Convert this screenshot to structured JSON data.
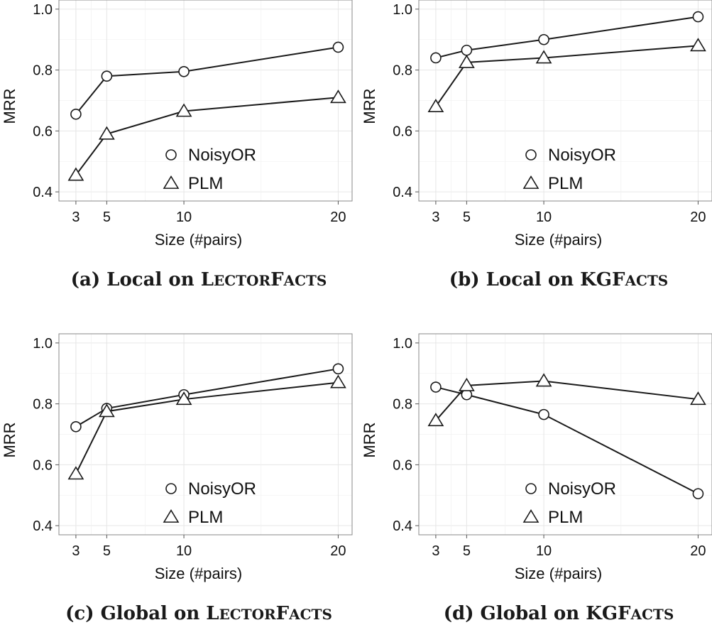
{
  "chart_data": [
    {
      "type": "line",
      "caption": {
        "prefix": "(a) Local on ",
        "sc": [
          [
            "L",
            "ECTOR"
          ],
          [
            "F",
            "ACTS"
          ]
        ]
      },
      "xlabel": "Size (#pairs)",
      "ylabel": "MRR",
      "x": [
        3,
        5,
        10,
        20
      ],
      "xticks": [
        3,
        5,
        10,
        20
      ],
      "yticks": [
        0.4,
        0.6,
        0.8,
        1.0
      ],
      "ytick_labels": [
        "0.4",
        "0.6",
        "0.8",
        "1.0"
      ],
      "xlim": [
        1.9,
        20.9
      ],
      "ylim": [
        0.37,
        1.03
      ],
      "grid": true,
      "legend": "center",
      "series": [
        {
          "name": "NoisyOR",
          "marker": "circle",
          "values": [
            0.655,
            0.78,
            0.795,
            0.875
          ]
        },
        {
          "name": "PLM",
          "marker": "triangle",
          "values": [
            0.455,
            0.59,
            0.665,
            0.71
          ]
        }
      ]
    },
    {
      "type": "line",
      "caption": {
        "prefix": "(b) Local on ",
        "sc": [
          [
            "KGF",
            "ACTS"
          ]
        ]
      },
      "xlabel": "Size (#pairs)",
      "ylabel": "MRR",
      "x": [
        3,
        5,
        10,
        20
      ],
      "xticks": [
        3,
        5,
        10,
        20
      ],
      "yticks": [
        0.4,
        0.6,
        0.8,
        1.0
      ],
      "ytick_labels": [
        "0.4",
        "0.6",
        "0.8",
        "1.0"
      ],
      "xlim": [
        1.9,
        20.9
      ],
      "ylim": [
        0.37,
        1.03
      ],
      "grid": true,
      "legend": "center",
      "series": [
        {
          "name": "NoisyOR",
          "marker": "circle",
          "values": [
            0.84,
            0.865,
            0.9,
            0.975
          ]
        },
        {
          "name": "PLM",
          "marker": "triangle",
          "values": [
            0.68,
            0.825,
            0.84,
            0.88
          ]
        }
      ]
    },
    {
      "type": "line",
      "caption": {
        "prefix": "(c) Global on ",
        "sc": [
          [
            "L",
            "ECTOR"
          ],
          [
            "F",
            "ACTS"
          ]
        ]
      },
      "xlabel": "Size (#pairs)",
      "ylabel": "MRR",
      "x": [
        3,
        5,
        10,
        20
      ],
      "xticks": [
        3,
        5,
        10,
        20
      ],
      "yticks": [
        0.4,
        0.6,
        0.8,
        1.0
      ],
      "ytick_labels": [
        "0.4",
        "0.6",
        "0.8",
        "1.0"
      ],
      "xlim": [
        1.9,
        20.9
      ],
      "ylim": [
        0.37,
        1.03
      ],
      "grid": true,
      "legend": "center",
      "series": [
        {
          "name": "NoisyOR",
          "marker": "circle",
          "values": [
            0.725,
            0.785,
            0.83,
            0.915
          ]
        },
        {
          "name": "PLM",
          "marker": "triangle",
          "values": [
            0.57,
            0.775,
            0.815,
            0.87
          ]
        }
      ]
    },
    {
      "type": "line",
      "caption": {
        "prefix": "(d) Global on ",
        "sc": [
          [
            "KGF",
            "ACTS"
          ]
        ]
      },
      "xlabel": "Size (#pairs)",
      "ylabel": "MRR",
      "x": [
        3,
        5,
        10,
        20
      ],
      "xticks": [
        3,
        5,
        10,
        20
      ],
      "yticks": [
        0.4,
        0.6,
        0.8,
        1.0
      ],
      "ytick_labels": [
        "0.4",
        "0.6",
        "0.8",
        "1.0"
      ],
      "xlim": [
        1.9,
        20.9
      ],
      "ylim": [
        0.37,
        1.03
      ],
      "grid": true,
      "legend": "center",
      "series": [
        {
          "name": "NoisyOR",
          "marker": "circle",
          "values": [
            0.855,
            0.83,
            0.765,
            0.505
          ]
        },
        {
          "name": "PLM",
          "marker": "triangle",
          "values": [
            0.745,
            0.86,
            0.875,
            0.815
          ]
        }
      ]
    }
  ]
}
